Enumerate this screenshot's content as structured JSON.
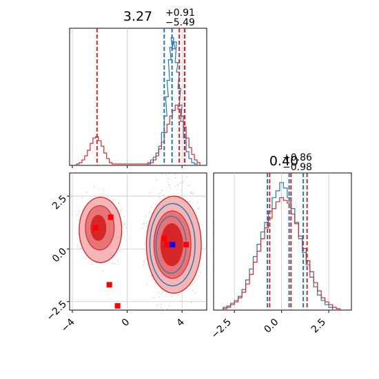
{
  "colors": {
    "blue": "#1f77b4",
    "red": "#d62728",
    "grid": "#c8c8c8",
    "fill_light": "#f4b6b7",
    "fill_mid": "#e77476",
    "fill_dark": "#d62728"
  },
  "chart_data": [
    {
      "type": "histogram",
      "panel": "top-left",
      "title_value": "3.27",
      "title_plus": "+0.91",
      "title_minus": "−5.49",
      "xlim": [
        -4.2,
        5.8
      ],
      "grid": true,
      "series": [
        {
          "color": "blue",
          "bins": [
            [
              1.6,
              0.02
            ],
            [
              1.8,
              0.04
            ],
            [
              2.0,
              0.06
            ],
            [
              2.2,
              0.09
            ],
            [
              2.4,
              0.14
            ],
            [
              2.6,
              0.24
            ],
            [
              2.8,
              0.36
            ],
            [
              2.9,
              0.5
            ],
            [
              3.0,
              0.62
            ],
            [
              3.1,
              0.77
            ],
            [
              3.2,
              0.86
            ],
            [
              3.3,
              0.93
            ],
            [
              3.4,
              0.85
            ],
            [
              3.5,
              0.9
            ],
            [
              3.6,
              0.75
            ],
            [
              3.7,
              0.68
            ],
            [
              3.8,
              0.56
            ],
            [
              3.9,
              0.44
            ],
            [
              4.0,
              0.32
            ],
            [
              4.2,
              0.2
            ],
            [
              4.4,
              0.1
            ],
            [
              4.6,
              0.05
            ],
            [
              4.8,
              0.02
            ],
            [
              5.0,
              0.01
            ]
          ],
          "quantiles": [
            2.7,
            3.27,
            4.18
          ]
        },
        {
          "color": "red",
          "bins": [
            [
              -3.6,
              0.01
            ],
            [
              -3.4,
              0.02
            ],
            [
              -3.2,
              0.04
            ],
            [
              -3.0,
              0.07
            ],
            [
              -2.8,
              0.11
            ],
            [
              -2.6,
              0.16
            ],
            [
              -2.4,
              0.2
            ],
            [
              -2.2,
              0.21
            ],
            [
              -2.0,
              0.18
            ],
            [
              -1.8,
              0.14
            ],
            [
              -1.6,
              0.09
            ],
            [
              -1.4,
              0.05
            ],
            [
              -1.2,
              0.02
            ],
            [
              -1.0,
              0.01
            ],
            [
              1.6,
              0.01
            ],
            [
              1.8,
              0.02
            ],
            [
              2.0,
              0.04
            ],
            [
              2.2,
              0.07
            ],
            [
              2.4,
              0.12
            ],
            [
              2.6,
              0.17
            ],
            [
              2.8,
              0.24
            ],
            [
              3.0,
              0.3
            ],
            [
              3.2,
              0.36
            ],
            [
              3.4,
              0.4
            ],
            [
              3.6,
              0.44
            ],
            [
              3.8,
              0.41
            ],
            [
              4.0,
              0.36
            ],
            [
              4.2,
              0.28
            ],
            [
              4.4,
              0.2
            ],
            [
              4.6,
              0.13
            ],
            [
              4.8,
              0.08
            ],
            [
              5.0,
              0.04
            ],
            [
              5.2,
              0.02
            ]
          ],
          "quantiles": [
            -2.2,
            3.8,
            4.2
          ]
        }
      ]
    },
    {
      "type": "contour",
      "panel": "bottom-left",
      "xlim": [
        -4.2,
        5.8
      ],
      "ylim": [
        -2.9,
        3.6
      ],
      "xticks": [
        "−4",
        "0",
        "4"
      ],
      "xtick_values": [
        -4,
        0,
        4
      ],
      "yticks": [
        "2.5",
        "0.0",
        "−2.5"
      ],
      "ytick_values": [
        2.5,
        0.0,
        -2.5
      ],
      "grid": true,
      "red_points": [
        [
          -2.3,
          1.0
        ],
        [
          -1.2,
          1.5
        ],
        [
          -1.3,
          -1.7
        ],
        [
          -0.7,
          -2.7
        ],
        [
          2.7,
          0.5
        ],
        [
          2.9,
          0.2
        ],
        [
          4.3,
          0.2
        ]
      ],
      "blue_points": [
        [
          3.3,
          0.2
        ]
      ]
    },
    {
      "type": "histogram",
      "panel": "bottom-right",
      "title_value": "0.40",
      "title_plus": "+0.86",
      "title_minus": "−0.98",
      "xlim": [
        -3.6,
        3.7
      ],
      "grid": true,
      "xticks": [
        "−2.5",
        "0.0",
        "2.5"
      ],
      "xtick_values": [
        -2.5,
        0.0,
        2.5
      ],
      "series": [
        {
          "color": "blue",
          "bins": [
            [
              -3.0,
              0.02
            ],
            [
              -2.8,
              0.03
            ],
            [
              -2.6,
              0.05
            ],
            [
              -2.4,
              0.07
            ],
            [
              -2.2,
              0.1
            ],
            [
              -2.0,
              0.15
            ],
            [
              -1.8,
              0.22
            ],
            [
              -1.6,
              0.3
            ],
            [
              -1.4,
              0.39
            ],
            [
              -1.2,
              0.48
            ],
            [
              -1.0,
              0.57
            ],
            [
              -0.8,
              0.64
            ],
            [
              -0.6,
              0.72
            ],
            [
              -0.4,
              0.82
            ],
            [
              -0.2,
              0.87
            ],
            [
              0.0,
              0.93
            ],
            [
              0.2,
              0.89
            ],
            [
              0.4,
              0.82
            ],
            [
              0.6,
              0.74
            ],
            [
              0.8,
              0.64
            ],
            [
              1.0,
              0.52
            ],
            [
              1.2,
              0.42
            ],
            [
              1.4,
              0.33
            ],
            [
              1.6,
              0.24
            ],
            [
              1.8,
              0.17
            ],
            [
              2.0,
              0.11
            ],
            [
              2.2,
              0.07
            ],
            [
              2.4,
              0.04
            ],
            [
              2.6,
              0.02
            ]
          ],
          "quantiles": [
            -0.75,
            0.4,
            1.15
          ]
        },
        {
          "color": "red",
          "bins": [
            [
              -3.0,
              0.01
            ],
            [
              -2.8,
              0.02
            ],
            [
              -2.6,
              0.04
            ],
            [
              -2.4,
              0.06
            ],
            [
              -2.2,
              0.09
            ],
            [
              -2.0,
              0.13
            ],
            [
              -1.8,
              0.19
            ],
            [
              -1.6,
              0.26
            ],
            [
              -1.4,
              0.35
            ],
            [
              -1.2,
              0.43
            ],
            [
              -1.0,
              0.52
            ],
            [
              -0.8,
              0.6
            ],
            [
              -0.6,
              0.67
            ],
            [
              -0.4,
              0.74
            ],
            [
              -0.2,
              0.79
            ],
            [
              0.0,
              0.82
            ],
            [
              0.2,
              0.8
            ],
            [
              0.4,
              0.78
            ],
            [
              0.6,
              0.7
            ],
            [
              0.8,
              0.63
            ],
            [
              1.0,
              0.54
            ],
            [
              1.2,
              0.45
            ],
            [
              1.4,
              0.36
            ],
            [
              1.6,
              0.28
            ],
            [
              1.8,
              0.2
            ],
            [
              2.0,
              0.14
            ],
            [
              2.2,
              0.09
            ],
            [
              2.4,
              0.06
            ],
            [
              2.6,
              0.04
            ],
            [
              2.8,
              0.02
            ],
            [
              3.0,
              0.01
            ]
          ],
          "quantiles": [
            -0.63,
            0.5,
            1.35
          ]
        }
      ]
    }
  ]
}
